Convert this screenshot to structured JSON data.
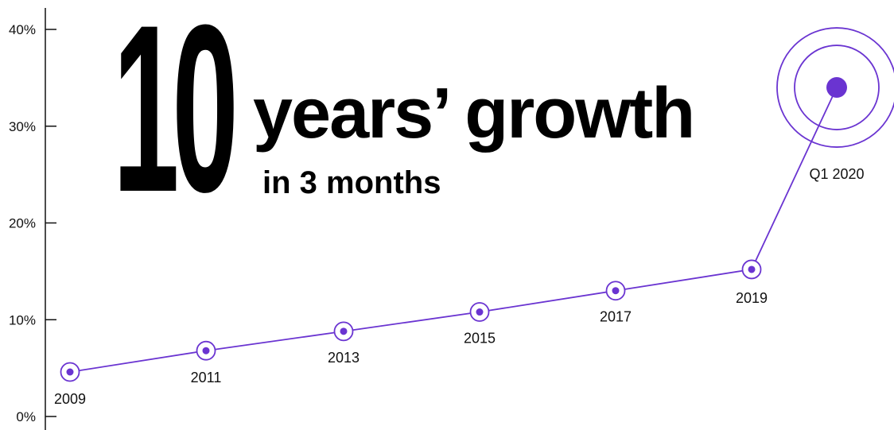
{
  "headline": {
    "number": "10",
    "main": "years’ growth",
    "sub": "in 3 months"
  },
  "colors": {
    "accent": "#6a34d1",
    "axis": "#111111"
  },
  "chart_data": {
    "type": "line",
    "title": "",
    "xlabel": "",
    "ylabel": "",
    "ylim": [
      0,
      40
    ],
    "y_ticks": [
      {
        "value": 0,
        "label": "0%"
      },
      {
        "value": 10,
        "label": "10%"
      },
      {
        "value": 20,
        "label": "20%"
      },
      {
        "value": 30,
        "label": "30%"
      },
      {
        "value": 40,
        "label": "40%"
      }
    ],
    "grid": false,
    "legend": "none",
    "points": [
      {
        "label": "2009",
        "value": 4.6,
        "label_pos": "below"
      },
      {
        "label": "2011",
        "value": 6.8,
        "label_pos": "below"
      },
      {
        "label": "2013",
        "value": 8.8,
        "label_pos": "below"
      },
      {
        "label": "2015",
        "value": 10.8,
        "label_pos": "below"
      },
      {
        "label": "2017",
        "value": 13.0,
        "label_pos": "below"
      },
      {
        "label": "2019",
        "value": 15.2,
        "label_pos": "below"
      },
      {
        "label": "Q1 2020",
        "value": 34.0,
        "label_pos": "below",
        "highlight": true
      }
    ]
  }
}
